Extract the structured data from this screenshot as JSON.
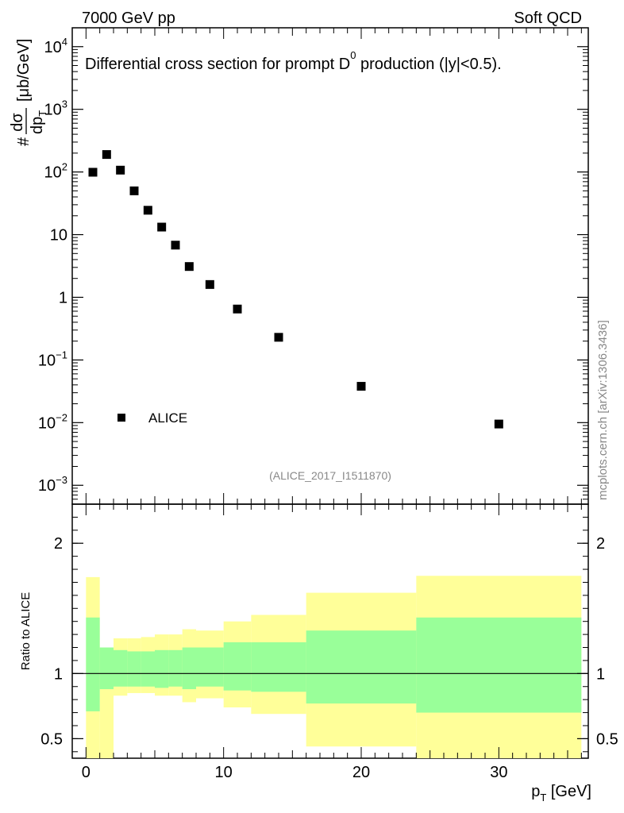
{
  "header": {
    "left": "7000 GeV pp",
    "right": "Soft QCD"
  },
  "chart_data": [
    {
      "type": "scatter",
      "title": "Differential cross section for prompt D0 production (|y|<0.5).",
      "title_parts": {
        "before": "Differential cross section for prompt D",
        "superscript": "0",
        "after": " production (|y|<0.5)."
      },
      "ylabel": "#dσ/dpT [μb/GeV]",
      "ylabel_parts": {
        "hash": "#",
        "num": "dσ",
        "den": "dp",
        "den_sub": "T",
        "unit": "[μb/GeV]"
      },
      "y_scale": "log",
      "ylim": [
        0.0005,
        20000
      ],
      "xlim": [
        -1,
        36.5
      ],
      "yticks": [
        {
          "base": "10",
          "exp": "4"
        },
        {
          "base": "10",
          "exp": "3"
        },
        {
          "base": "10",
          "exp": "2"
        },
        {
          "base": "10",
          "exp": ""
        },
        {
          "base": "1",
          "exp": ""
        },
        {
          "base": "10",
          "exp": "−1"
        },
        {
          "base": "10",
          "exp": "−2"
        },
        {
          "base": "10",
          "exp": "−3"
        }
      ],
      "series": [
        {
          "name": "ALICE",
          "marker": "square",
          "color": "#000000",
          "x": [
            0.5,
            1.5,
            2.5,
            3.5,
            4.5,
            5.5,
            6.5,
            7.5,
            9,
            11,
            14,
            20,
            30
          ],
          "y": [
            99,
            190,
            107,
            50,
            24.5,
            13.2,
            6.8,
            3.1,
            1.6,
            0.65,
            0.23,
            0.038,
            0.0095
          ]
        }
      ],
      "legend": {
        "placement": "bottom-left",
        "label": "ALICE"
      },
      "analysis_label": "(ALICE_2017_I1511870)",
      "grid": false
    },
    {
      "type": "area",
      "ylabel": "Ratio to ALICE",
      "xlabel": "pT [GeV]",
      "xlabel_parts": {
        "main": "p",
        "sub": "T",
        "unit": " [GeV]"
      },
      "xlim": [
        -1,
        36.5
      ],
      "ylim": [
        0.35,
        2.3
      ],
      "xticks": [
        "0",
        "10",
        "20",
        "30"
      ],
      "yticks": [
        "0.5",
        "1",
        "2"
      ],
      "reference_line": 1,
      "bins": [
        [
          0,
          1
        ],
        [
          1,
          2
        ],
        [
          2,
          3
        ],
        [
          3,
          4
        ],
        [
          4,
          5
        ],
        [
          5,
          6
        ],
        [
          6,
          7
        ],
        [
          7,
          8
        ],
        [
          8,
          10
        ],
        [
          10,
          12
        ],
        [
          12,
          16
        ],
        [
          16,
          24
        ],
        [
          24,
          36
        ]
      ],
      "stat_band": {
        "color": "#99ff99",
        "lower": [
          0.71,
          0.88,
          0.9,
          0.9,
          0.9,
          0.89,
          0.9,
          0.88,
          0.9,
          0.87,
          0.86,
          0.77,
          0.7
        ],
        "upper": [
          1.43,
          1.2,
          1.18,
          1.17,
          1.17,
          1.18,
          1.18,
          1.2,
          1.2,
          1.24,
          1.24,
          1.33,
          1.43
        ]
      },
      "syst_band": {
        "color": "#ffff99",
        "lower": [
          0.3,
          0.3,
          0.83,
          0.85,
          0.85,
          0.83,
          0.83,
          0.78,
          0.81,
          0.74,
          0.69,
          0.44,
          0.3
        ],
        "upper": [
          1.74,
          1.2,
          1.27,
          1.27,
          1.28,
          1.3,
          1.3,
          1.34,
          1.33,
          1.4,
          1.45,
          1.62,
          1.75
        ]
      }
    }
  ],
  "sidebar": {
    "watermark": "mcplots.cern.ch [arXiv:1306.3436]"
  }
}
